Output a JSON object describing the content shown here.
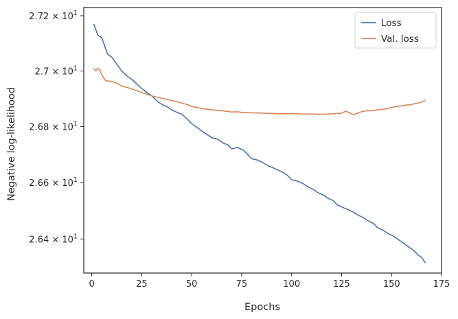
{
  "chart_data": {
    "type": "line",
    "xlabel": "Epochs",
    "ylabel": "Negative log-likelihood",
    "y_scale": "log",
    "xlim": [
      -4,
      175
    ],
    "ylim": [
      26.28,
      27.23
    ],
    "x_ticks": [
      0,
      25,
      50,
      75,
      100,
      125,
      150,
      175
    ],
    "x_tick_labels": [
      "0",
      "25",
      "50",
      "75",
      "100",
      "125",
      "150",
      "175"
    ],
    "y_ticks": [
      26.4,
      26.6,
      26.8,
      27.0,
      27.2
    ],
    "y_tick_labels": [
      {
        "mantissa": "2.64",
        "base": "10",
        "exp": "1"
      },
      {
        "mantissa": "2.66",
        "base": "10",
        "exp": "1"
      },
      {
        "mantissa": "2.68",
        "base": "10",
        "exp": "1"
      },
      {
        "mantissa": "2.7",
        "base": "10",
        "exp": "1"
      },
      {
        "mantissa": "2.72",
        "base": "10",
        "exp": "1"
      }
    ],
    "y_tick_mult": "×",
    "grid": false,
    "legend_position": "top-right",
    "series": [
      {
        "name": "Loss",
        "color": "#4c72b0",
        "points": [
          [
            1,
            27.17
          ],
          [
            3,
            27.13
          ],
          [
            5,
            27.12
          ],
          [
            8,
            27.06
          ],
          [
            10,
            27.05
          ],
          [
            12,
            27.03
          ],
          [
            15,
            27.0
          ],
          [
            18,
            26.98
          ],
          [
            20,
            26.97
          ],
          [
            23,
            26.95
          ],
          [
            26,
            26.93
          ],
          [
            28,
            26.92
          ],
          [
            30,
            26.91
          ],
          [
            33,
            26.89
          ],
          [
            35,
            26.88
          ],
          [
            38,
            26.87
          ],
          [
            40,
            26.86
          ],
          [
            43,
            26.85
          ],
          [
            45,
            26.845
          ],
          [
            48,
            26.825
          ],
          [
            50,
            26.81
          ],
          [
            53,
            26.795
          ],
          [
            55,
            26.785
          ],
          [
            58,
            26.77
          ],
          [
            60,
            26.76
          ],
          [
            63,
            26.755
          ],
          [
            66,
            26.74
          ],
          [
            68,
            26.735
          ],
          [
            70,
            26.72
          ],
          [
            73,
            26.725
          ],
          [
            76,
            26.715
          ],
          [
            78,
            26.7
          ],
          [
            80,
            26.685
          ],
          [
            83,
            26.68
          ],
          [
            86,
            26.67
          ],
          [
            88,
            26.66
          ],
          [
            90,
            26.655
          ],
          [
            93,
            26.645
          ],
          [
            96,
            26.635
          ],
          [
            98,
            26.625
          ],
          [
            100,
            26.61
          ],
          [
            103,
            26.605
          ],
          [
            106,
            26.595
          ],
          [
            108,
            26.585
          ],
          [
            111,
            26.575
          ],
          [
            113,
            26.565
          ],
          [
            116,
            26.555
          ],
          [
            118,
            26.545
          ],
          [
            121,
            26.535
          ],
          [
            123,
            26.52
          ],
          [
            126,
            26.51
          ],
          [
            128,
            26.505
          ],
          [
            131,
            26.495
          ],
          [
            133,
            26.485
          ],
          [
            136,
            26.475
          ],
          [
            138,
            26.465
          ],
          [
            141,
            26.455
          ],
          [
            143,
            26.44
          ],
          [
            146,
            26.43
          ],
          [
            148,
            26.42
          ],
          [
            151,
            26.41
          ],
          [
            153,
            26.4
          ],
          [
            156,
            26.385
          ],
          [
            158,
            26.375
          ],
          [
            161,
            26.36
          ],
          [
            163,
            26.345
          ],
          [
            165,
            26.335
          ],
          [
            167,
            26.315
          ]
        ]
      },
      {
        "name": "Val. loss",
        "color": "#dd8452",
        "points": [
          [
            1,
            27.01
          ],
          [
            2,
            27.0
          ],
          [
            3,
            27.01
          ],
          [
            4,
            27.005
          ],
          [
            5,
            26.985
          ],
          [
            7,
            26.965
          ],
          [
            10,
            26.962
          ],
          [
            13,
            26.955
          ],
          [
            15,
            26.945
          ],
          [
            18,
            26.94
          ],
          [
            20,
            26.935
          ],
          [
            23,
            26.928
          ],
          [
            25,
            26.922
          ],
          [
            28,
            26.915
          ],
          [
            30,
            26.91
          ],
          [
            33,
            26.905
          ],
          [
            36,
            26.9
          ],
          [
            39,
            26.895
          ],
          [
            42,
            26.89
          ],
          [
            45,
            26.885
          ],
          [
            48,
            26.878
          ],
          [
            50,
            26.872
          ],
          [
            53,
            26.868
          ],
          [
            55,
            26.865
          ],
          [
            58,
            26.862
          ],
          [
            60,
            26.86
          ],
          [
            63,
            26.858
          ],
          [
            66,
            26.856
          ],
          [
            70,
            26.852
          ],
          [
            73,
            26.853
          ],
          [
            76,
            26.85
          ],
          [
            78,
            26.85
          ],
          [
            80,
            26.849
          ],
          [
            83,
            26.849
          ],
          [
            86,
            26.848
          ],
          [
            88,
            26.847
          ],
          [
            90,
            26.847
          ],
          [
            93,
            26.846
          ],
          [
            96,
            26.846
          ],
          [
            98,
            26.846
          ],
          [
            100,
            26.847
          ],
          [
            103,
            26.846
          ],
          [
            106,
            26.845
          ],
          [
            108,
            26.845
          ],
          [
            111,
            26.845
          ],
          [
            113,
            26.844
          ],
          [
            116,
            26.844
          ],
          [
            118,
            26.845
          ],
          [
            121,
            26.846
          ],
          [
            123,
            26.847
          ],
          [
            125,
            26.848
          ],
          [
            127,
            26.855
          ],
          [
            129,
            26.85
          ],
          [
            131,
            26.842
          ],
          [
            133,
            26.848
          ],
          [
            135,
            26.853
          ],
          [
            137,
            26.856
          ],
          [
            140,
            26.857
          ],
          [
            143,
            26.86
          ],
          [
            146,
            26.862
          ],
          [
            148,
            26.865
          ],
          [
            150,
            26.868
          ],
          [
            152,
            26.872
          ],
          [
            155,
            26.874
          ],
          [
            157,
            26.877
          ],
          [
            160,
            26.879
          ],
          [
            162,
            26.883
          ],
          [
            164,
            26.886
          ],
          [
            166,
            26.89
          ],
          [
            167,
            26.895
          ]
        ]
      }
    ]
  }
}
